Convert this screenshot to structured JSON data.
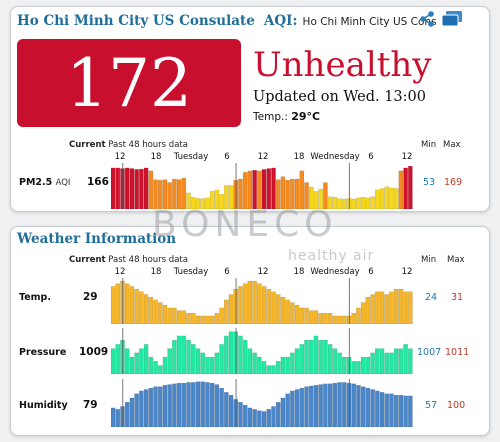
{
  "aqi_panel": {
    "station_name": "Ho Chi Minh City US Consulate",
    "aqi_label": "AQI:",
    "aqi_subtitle": "Ho Chi Minh City US Cons",
    "aqi_value": "172",
    "status": "Unhealthy",
    "updated": "Updated on Wed. 13:00",
    "temp_label": "Temp.:",
    "temp_value": "29°C",
    "current_head": "Current",
    "history_head": "Past 48 hours data",
    "min_head": "Min",
    "max_head": "Max",
    "ticks": [
      "12",
      "18",
      "Tuesday",
      "6",
      "12",
      "18",
      "Wednesday",
      "6",
      "12"
    ],
    "pm25": {
      "label": "PM2.5",
      "tag": "AQI",
      "current": "166",
      "min": "53",
      "max": "169",
      "history": [
        160,
        160,
        158,
        160,
        158,
        155,
        156,
        160,
        150,
        120,
        118,
        120,
        110,
        122,
        120,
        125,
        75,
        60,
        56,
        55,
        58,
        80,
        85,
        70,
        100,
        100,
        118,
        122,
        145,
        150,
        152,
        150,
        155,
        158,
        160,
        120,
        130,
        118,
        122,
        122,
        150,
        110,
        95,
        80,
        88,
        110,
        62,
        60,
        55,
        54,
        56,
        54,
        58,
        60,
        58,
        62,
        85,
        90,
        96,
        92,
        90,
        150,
        160,
        166
      ]
    }
  },
  "weather_panel": {
    "title": "Weather Information",
    "current_head": "Current",
    "history_head": "Past 48 hours data",
    "min_head": "Min",
    "max_head": "Max",
    "ticks": [
      "12",
      "18",
      "Tuesday",
      "6",
      "12",
      "18",
      "Wednesday",
      "6",
      "12"
    ],
    "rows": [
      {
        "label": "Temp.",
        "current": "29",
        "min": "24",
        "max": "31",
        "color": "#f5b52a",
        "history": [
          30,
          30.5,
          31,
          30.5,
          30,
          29.5,
          29,
          28.5,
          28,
          27.5,
          27,
          26.5,
          26,
          26,
          25.5,
          25.5,
          25,
          25,
          24.5,
          24.5,
          24.5,
          24.5,
          25,
          26,
          27.5,
          28.5,
          29.5,
          30,
          30.5,
          31,
          31,
          30.5,
          30,
          29.5,
          29,
          28.5,
          28,
          27.5,
          27,
          26.5,
          26,
          26,
          25.5,
          25.5,
          25,
          25,
          25,
          24.5,
          24.5,
          24.5,
          24.5,
          25,
          26,
          27,
          28,
          28.5,
          29,
          29,
          28.5,
          29,
          29.5,
          29.5,
          29,
          29
        ]
      },
      {
        "label": "Pressure",
        "current": "1009",
        "min": "1007",
        "max": "1011",
        "color": "#22e8a2",
        "history": [
          1009,
          1009.5,
          1010,
          1009,
          1008,
          1008.5,
          1009,
          1009.5,
          1008,
          1007.5,
          1007,
          1008,
          1009,
          1010,
          1010.5,
          1010.5,
          1010,
          1009.5,
          1009,
          1008.5,
          1008,
          1008,
          1008.5,
          1009.5,
          1010.5,
          1011,
          1011,
          1010.5,
          1010,
          1009,
          1008.5,
          1008,
          1007.5,
          1007,
          1007,
          1007.5,
          1008,
          1008,
          1008.5,
          1009,
          1009.5,
          1010,
          1010,
          1010.5,
          1010,
          1010,
          1009.5,
          1009,
          1008.5,
          1008,
          1008,
          1007.5,
          1007.5,
          1008,
          1008,
          1008.5,
          1009,
          1009,
          1008.5,
          1008.5,
          1009,
          1009,
          1009.5,
          1009
        ]
      },
      {
        "label": "Humidity",
        "current": "79",
        "min": "57",
        "max": "100",
        "color": "#4a86c8",
        "history": [
          62,
          60,
          64,
          70,
          76,
          82,
          86,
          88,
          90,
          92,
          92,
          94,
          95,
          96,
          97,
          97,
          98,
          98,
          99,
          99,
          98,
          97,
          95,
          90,
          84,
          80,
          74,
          70,
          66,
          62,
          60,
          58,
          57,
          60,
          64,
          70,
          76,
          82,
          86,
          88,
          90,
          92,
          93,
          94,
          95,
          96,
          96,
          97,
          98,
          98,
          97,
          96,
          94,
          92,
          90,
          88,
          86,
          84,
          82,
          82,
          80,
          80,
          79,
          79
        ]
      }
    ]
  },
  "watermark": {
    "brand": "BONECO",
    "tagline": "healthy air"
  },
  "colors": {
    "aqi_box": "#c8102e",
    "title_blue": "#1f6d9a",
    "min_blue": "#1f78b4",
    "max_red": "#c0392b"
  },
  "icons": [
    "share-icon",
    "window-icon"
  ]
}
